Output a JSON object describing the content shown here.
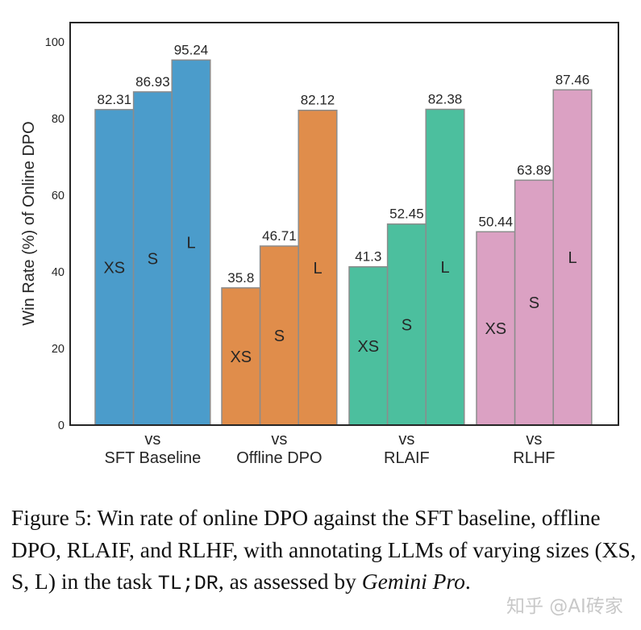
{
  "chart_data": {
    "type": "bar",
    "ylabel": "Win Rate (%) of Online DPO",
    "xlabel": "",
    "ylim": [
      0,
      105
    ],
    "yticks": [
      0,
      20,
      40,
      60,
      80,
      100
    ],
    "grid": false,
    "groups": [
      {
        "label_top": "vs",
        "label_bottom": "SFT Baseline",
        "color": "#4b9ccb",
        "bars": [
          {
            "size": "XS",
            "value": 82.31
          },
          {
            "size": "S",
            "value": 86.93
          },
          {
            "size": "L",
            "value": 95.24
          }
        ]
      },
      {
        "label_top": "vs",
        "label_bottom": "Offline DPO",
        "color": "#e08d4b",
        "bars": [
          {
            "size": "XS",
            "value": 35.8
          },
          {
            "size": "S",
            "value": 46.71
          },
          {
            "size": "L",
            "value": 82.12
          }
        ]
      },
      {
        "label_top": "vs",
        "label_bottom": "RLAIF",
        "color": "#4cbf9e",
        "bars": [
          {
            "size": "XS",
            "value": 41.3
          },
          {
            "size": "S",
            "value": 52.45
          },
          {
            "size": "L",
            "value": 82.38
          }
        ]
      },
      {
        "label_top": "vs",
        "label_bottom": "RLHF",
        "color": "#dba1c3",
        "bars": [
          {
            "size": "XS",
            "value": 50.44
          },
          {
            "size": "S",
            "value": 63.89
          },
          {
            "size": "L",
            "value": 87.46
          }
        ]
      }
    ],
    "value_labels": [
      [
        "82.31",
        "86.93",
        "95.24"
      ],
      [
        "35.8",
        "46.71",
        "82.12"
      ],
      [
        "41.3",
        "52.45",
        "82.38"
      ],
      [
        "50.44",
        "63.89",
        "87.46"
      ]
    ]
  },
  "caption": {
    "prefix": "Figure 5: Win rate of online DPO against the SFT baseline, offline DPO, RLAIF, and RLHF, with annotating LLMs of varying sizes (XS, S, L) in the task ",
    "task": "TL;DR",
    "middle": ", as assessed by ",
    "model": "Gemini Pro",
    "suffix": "."
  },
  "watermark": "知乎 @AI砖家"
}
